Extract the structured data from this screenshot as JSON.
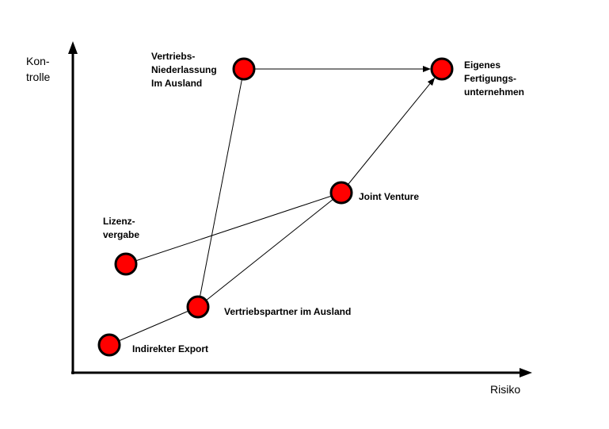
{
  "axes": {
    "y_label": [
      "Kon-",
      "trolle"
    ],
    "x_label": "Risiko"
  },
  "colors": {
    "node_fill": "#ff0000",
    "node_stroke": "#000000",
    "line": "#000000"
  },
  "nodes": [
    {
      "id": "indirekter-export",
      "label": [
        "Indirekter Export"
      ]
    },
    {
      "id": "vertriebspartner",
      "label": [
        "Vertriebspartner im Ausland"
      ]
    },
    {
      "id": "lizenzvergabe",
      "label": [
        "Lizenz-",
        "vergabe"
      ]
    },
    {
      "id": "joint-venture",
      "label": [
        "Joint Venture"
      ]
    },
    {
      "id": "vertriebsniederlassung",
      "label": [
        "Vertriebs-",
        "Niederlassung",
        "Im Ausland"
      ]
    },
    {
      "id": "fertigungsunternehmen",
      "label": [
        "Eigenes",
        "Fertigungs-",
        "unternehmen"
      ]
    }
  ],
  "edges": [
    {
      "from": "indirekter-export",
      "to": "vertriebspartner",
      "arrow": false
    },
    {
      "from": "vertriebspartner",
      "to": "vertriebsniederlassung",
      "arrow": false
    },
    {
      "from": "vertriebspartner",
      "to": "joint-venture",
      "arrow": false
    },
    {
      "from": "lizenzvergabe",
      "to": "joint-venture",
      "arrow": false
    },
    {
      "from": "vertriebsniederlassung",
      "to": "fertigungsunternehmen",
      "arrow": true
    },
    {
      "from": "joint-venture",
      "to": "fertigungsunternehmen",
      "arrow": true
    }
  ]
}
